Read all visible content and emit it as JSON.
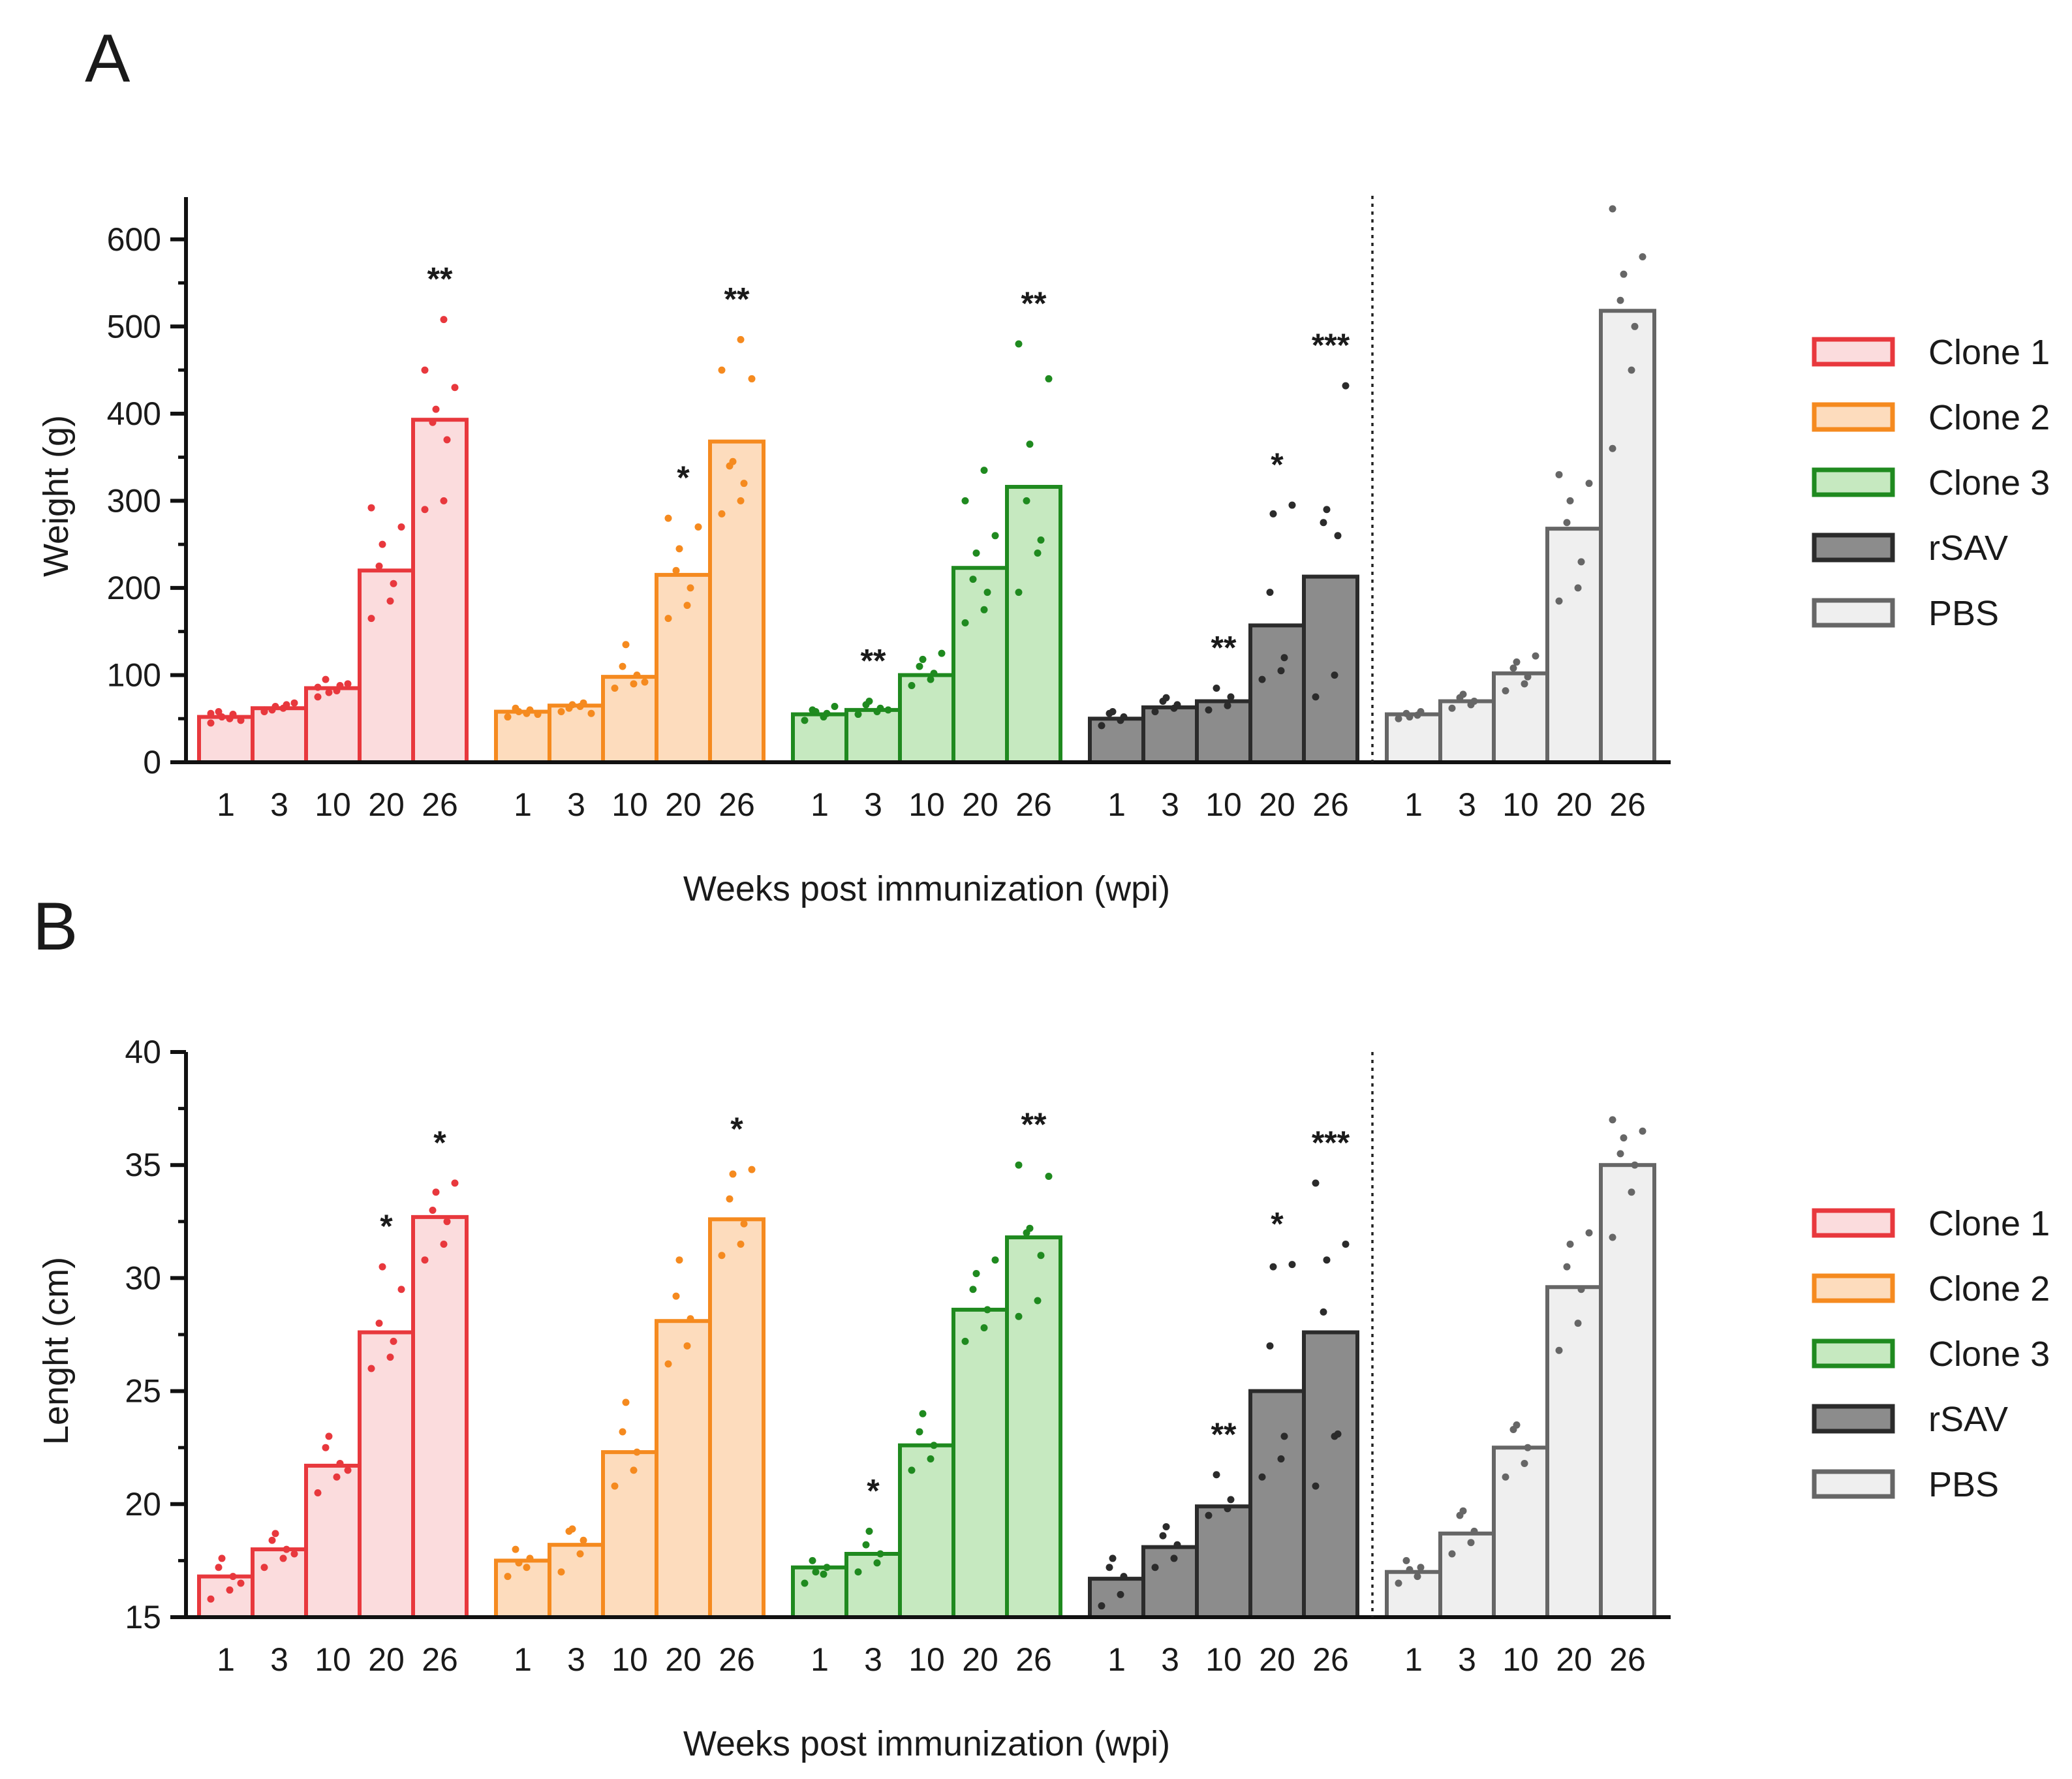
{
  "panels": [
    {
      "label": "A",
      "ylabel": "Weight (g)",
      "xlabel": "Weeks post immunization (wpi)"
    },
    {
      "label": "B",
      "ylabel": "Lenght (cm)",
      "xlabel": "Weeks post immunization (wpi)"
    }
  ],
  "legend": [
    {
      "name": "Clone 1",
      "color": "#e8383d",
      "fill": "#fbdcdd"
    },
    {
      "name": "Clone 2",
      "color": "#f58a1f",
      "fill": "#fddcbd"
    },
    {
      "name": "Clone 3",
      "color": "#1f8a1f",
      "fill": "#c6e9c0"
    },
    {
      "name": "rSAV",
      "color": "#2b2b2b",
      "fill": "#8c8c8c"
    },
    {
      "name": "PBS",
      "color": "#666666",
      "fill": "#efefef"
    }
  ],
  "chart_data": [
    {
      "type": "bar",
      "panel": "A",
      "title": "",
      "xlabel": "Weeks post immunization (wpi)",
      "ylabel": "Weight (g)",
      "ylim": [
        0,
        650
      ],
      "yticks": [
        0,
        100,
        200,
        300,
        400,
        500,
        600
      ],
      "categories": [
        "1",
        "3",
        "10",
        "20",
        "26"
      ],
      "series": [
        {
          "name": "Clone 1",
          "values": [
            52,
            62,
            85,
            220,
            393
          ],
          "significance": [
            "",
            "",
            "",
            "",
            "**"
          ],
          "points": [
            [
              45,
              50,
              55,
              58,
              52,
              48,
              56
            ],
            [
              58,
              62,
              66,
              60,
              64,
              68,
              60
            ],
            [
              75,
              82,
              88,
              95,
              80,
              90,
              86
            ],
            [
              165,
              185,
              205,
              225,
              250,
              270,
              292
            ],
            [
              290,
              300,
              370,
              390,
              405,
              430,
              450,
              508
            ]
          ]
        },
        {
          "name": "Clone 2",
          "values": [
            58,
            65,
            98,
            215,
            368
          ],
          "significance": [
            "",
            "",
            "",
            "*",
            "**"
          ],
          "points": [
            [
              52,
              56,
              60,
              62,
              58,
              55
            ],
            [
              58,
              64,
              68,
              62,
              66,
              56
            ],
            [
              85,
              90,
              100,
              110,
              135,
              92
            ],
            [
              165,
              180,
              200,
              220,
              245,
              270,
              280
            ],
            [
              285,
              300,
              320,
              340,
              345,
              440,
              450,
              485
            ]
          ]
        },
        {
          "name": "Clone 3",
          "values": [
            55,
            60,
            100,
            223,
            316
          ],
          "significance": [
            "",
            "**",
            "",
            "",
            "**"
          ],
          "points": [
            [
              48,
              52,
              56,
              60,
              58,
              64
            ],
            [
              55,
              58,
              62,
              66,
              70,
              60
            ],
            [
              88,
              95,
              102,
              110,
              118,
              125
            ],
            [
              160,
              175,
              195,
              210,
              240,
              260,
              300,
              335
            ],
            [
              195,
              240,
              255,
              300,
              365,
              440,
              480
            ]
          ]
        },
        {
          "name": "rSAV",
          "values": [
            50,
            63,
            70,
            157,
            213
          ],
          "significance": [
            "",
            "",
            "**",
            "*",
            "***"
          ],
          "points": [
            [
              42,
              48,
              52,
              56,
              58
            ],
            [
              58,
              62,
              66,
              70,
              74
            ],
            [
              60,
              65,
              75,
              85
            ],
            [
              95,
              105,
              120,
              195,
              285,
              295
            ],
            [
              75,
              100,
              260,
              275,
              290,
              432
            ]
          ]
        },
        {
          "name": "PBS",
          "values": [
            55,
            70,
            102,
            268,
            518
          ],
          "significance": [
            "",
            "",
            "",
            "",
            ""
          ],
          "points": [
            [
              50,
              54,
              58,
              56,
              52
            ],
            [
              62,
              66,
              70,
              74,
              78
            ],
            [
              82,
              90,
              98,
              108,
              115,
              122
            ],
            [
              185,
              200,
              230,
              275,
              300,
              320,
              330
            ],
            [
              360,
              450,
              500,
              530,
              560,
              580,
              635
            ]
          ]
        }
      ]
    },
    {
      "type": "bar",
      "panel": "B",
      "title": "",
      "xlabel": "Weeks post immunization (wpi)",
      "ylabel": "Lenght (cm)",
      "ylim": [
        15,
        40
      ],
      "yticks": [
        15,
        20,
        25,
        30,
        35,
        40
      ],
      "categories": [
        "1",
        "3",
        "10",
        "20",
        "26"
      ],
      "series": [
        {
          "name": "Clone 1",
          "values": [
            16.8,
            18.0,
            21.7,
            27.6,
            32.7
          ],
          "significance": [
            "",
            "",
            "",
            "*",
            "*"
          ],
          "points": [
            [
              15.8,
              16.2,
              16.8,
              17.2,
              17.6,
              16.5
            ],
            [
              17.2,
              17.6,
              18.0,
              18.4,
              18.7,
              17.8
            ],
            [
              20.5,
              21.2,
              21.8,
              22.5,
              23.0,
              21.5
            ],
            [
              26.0,
              26.5,
              27.2,
              28.0,
              30.5,
              29.5
            ],
            [
              30.8,
              31.5,
              32.5,
              33.0,
              33.8,
              34.2
            ]
          ]
        },
        {
          "name": "Clone 2",
          "values": [
            17.5,
            18.2,
            22.3,
            28.1,
            32.6
          ],
          "significance": [
            "",
            "",
            "",
            "",
            "*"
          ],
          "points": [
            [
              16.8,
              17.2,
              17.6,
              18.0,
              17.4
            ],
            [
              17.0,
              17.8,
              18.4,
              18.8,
              18.9
            ],
            [
              20.8,
              21.5,
              22.3,
              23.2,
              24.5
            ],
            [
              26.2,
              27.0,
              28.2,
              29.2,
              30.8
            ],
            [
              31.0,
              31.5,
              32.4,
              33.5,
              34.6,
              34.8
            ]
          ]
        },
        {
          "name": "Clone 3",
          "values": [
            17.2,
            17.8,
            22.6,
            28.6,
            31.8
          ],
          "significance": [
            "",
            "*",
            "",
            "",
            "**"
          ],
          "points": [
            [
              16.5,
              16.9,
              17.2,
              17.5,
              17.0
            ],
            [
              17.0,
              17.4,
              17.8,
              18.2,
              18.8
            ],
            [
              21.5,
              22.0,
              22.6,
              23.2,
              24.0
            ],
            [
              27.2,
              27.8,
              28.6,
              29.5,
              30.2,
              30.8
            ],
            [
              28.3,
              29.0,
              31.0,
              32.0,
              32.2,
              34.5,
              35.0
            ]
          ]
        },
        {
          "name": "rSAV",
          "values": [
            16.7,
            18.1,
            19.9,
            25.0,
            27.6
          ],
          "significance": [
            "",
            "",
            "**",
            "*",
            "***"
          ],
          "points": [
            [
              15.5,
              16.0,
              16.8,
              17.2,
              17.6
            ],
            [
              17.2,
              17.6,
              18.2,
              18.6,
              19.0
            ],
            [
              19.5,
              19.8,
              20.2,
              21.3
            ],
            [
              21.2,
              22.0,
              23.0,
              27.0,
              30.5,
              30.6
            ],
            [
              20.8,
              23.0,
              23.1,
              28.5,
              30.8,
              31.5,
              34.2
            ]
          ]
        },
        {
          "name": "PBS",
          "values": [
            17.0,
            18.7,
            22.5,
            29.6,
            35.0
          ],
          "significance": [
            "",
            "",
            "",
            "",
            ""
          ],
          "points": [
            [
              16.5,
              16.8,
              17.2,
              17.5,
              17.1
            ],
            [
              17.8,
              18.3,
              18.8,
              19.5,
              19.7
            ],
            [
              21.2,
              21.8,
              22.5,
              23.3,
              23.5
            ],
            [
              26.8,
              28.0,
              29.5,
              30.5,
              31.5,
              32.0
            ],
            [
              31.8,
              33.8,
              35.0,
              35.5,
              36.2,
              36.5,
              37.0
            ]
          ]
        }
      ]
    }
  ]
}
